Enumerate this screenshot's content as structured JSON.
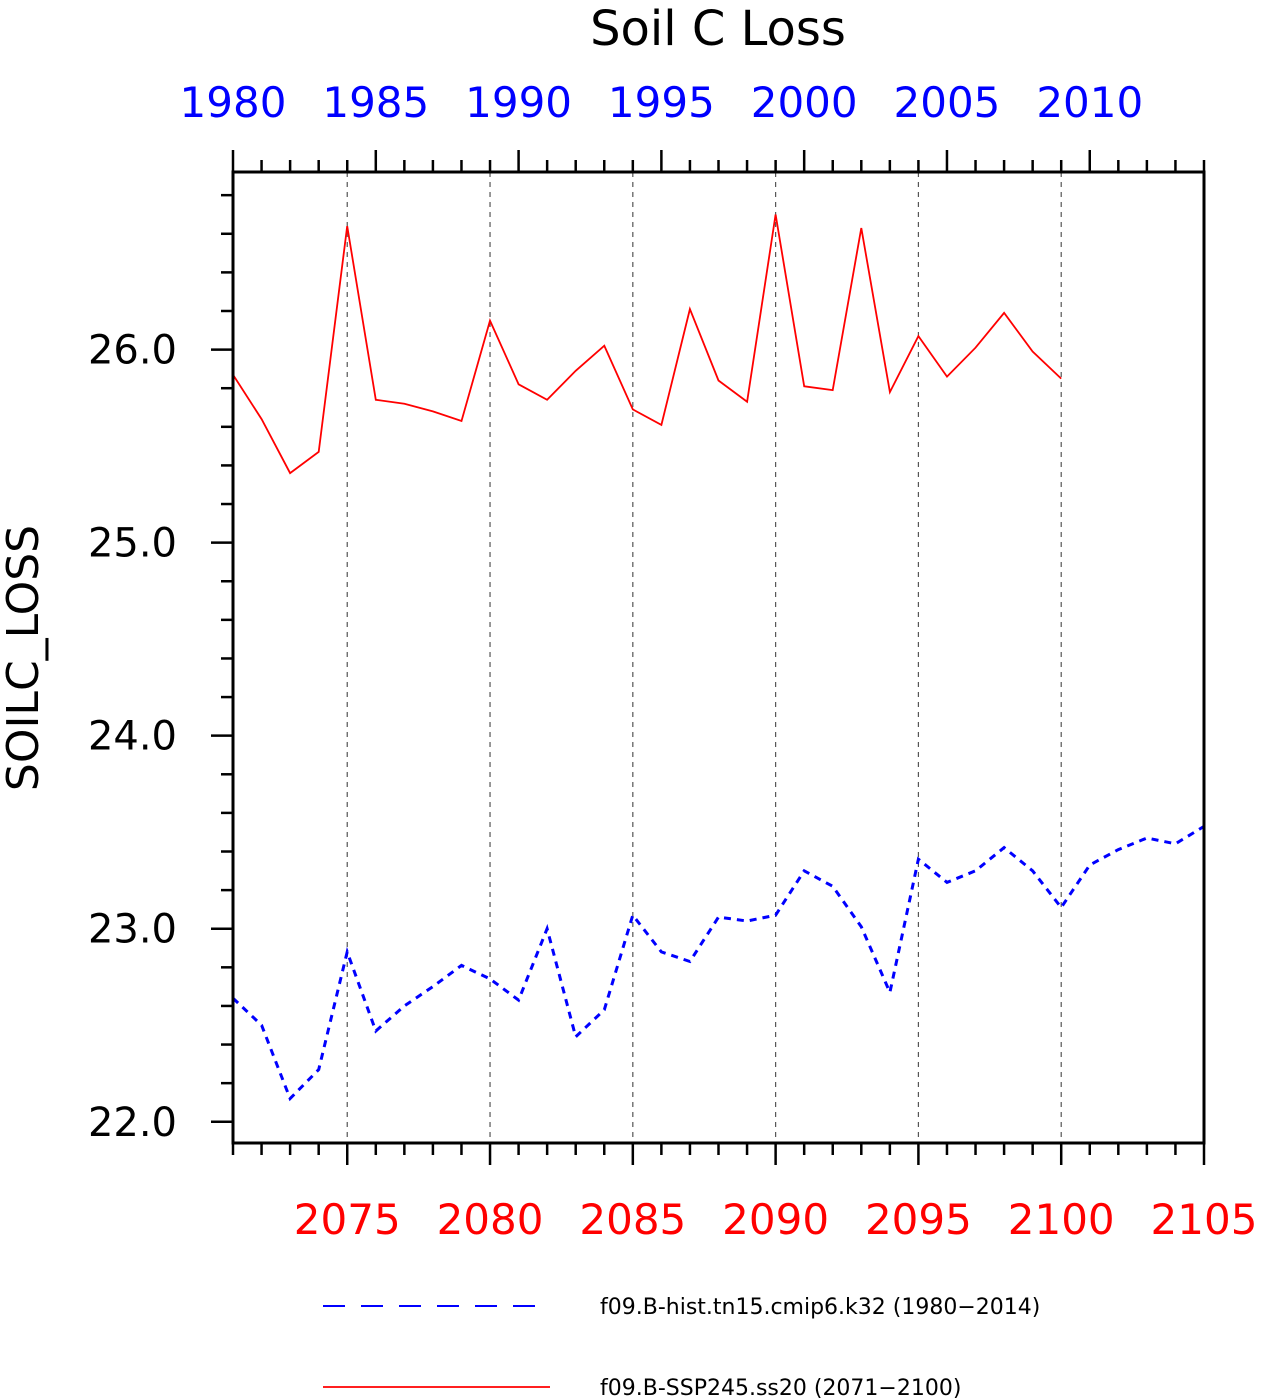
{
  "chart_data": {
    "type": "line",
    "title": "Soil C Loss",
    "ylabel": "SOILC_LOSS",
    "ylim": [
      21.89,
      26.92
    ],
    "yticks": [
      "22.0",
      "23.0",
      "24.0",
      "25.0",
      "26.0"
    ],
    "grid": "vertical dashed lines at major bottom-axis ticks",
    "legend_position": "bottom",
    "bottom_axis": {
      "color": "#ff0000",
      "range": [
        2071,
        2105
      ],
      "tick_labels": [
        "2075",
        "2080",
        "2085",
        "2090",
        "2095",
        "2100",
        "2105"
      ]
    },
    "top_axis": {
      "color": "#0000ff",
      "range": [
        1980,
        2014
      ],
      "tick_labels": [
        "1980",
        "1985",
        "1990",
        "1995",
        "2000",
        "2005",
        "2010"
      ]
    },
    "series": [
      {
        "name": "f09.B-hist.tn15.cmip6.k32 (1980−2014)",
        "color": "#0000ff",
        "style": "dashed",
        "axis": "top",
        "x": [
          1980,
          1981,
          1982,
          1983,
          1984,
          1985,
          1986,
          1987,
          1988,
          1989,
          1990,
          1991,
          1992,
          1993,
          1994,
          1995,
          1996,
          1997,
          1998,
          1999,
          2000,
          2001,
          2002,
          2003,
          2004,
          2005,
          2006,
          2007,
          2008,
          2009,
          2010,
          2011,
          2012,
          2013,
          2014
        ],
        "values": [
          22.64,
          22.5,
          22.12,
          22.27,
          22.88,
          22.47,
          22.6,
          22.7,
          22.81,
          22.74,
          22.63,
          23.0,
          22.44,
          22.58,
          23.07,
          22.88,
          22.83,
          23.06,
          23.04,
          23.07,
          23.3,
          23.22,
          23.01,
          22.67,
          23.36,
          23.24,
          23.3,
          23.42,
          23.3,
          23.11,
          23.33,
          23.41,
          23.47,
          23.44,
          23.53
        ]
      },
      {
        "name": "f09.B-SSP245.ss20 (2071−2100)",
        "color": "#ff0000",
        "style": "solid",
        "axis": "bottom",
        "x": [
          2071,
          2072,
          2073,
          2074,
          2075,
          2076,
          2077,
          2078,
          2079,
          2080,
          2081,
          2082,
          2083,
          2084,
          2085,
          2086,
          2087,
          2088,
          2089,
          2090,
          2091,
          2092,
          2093,
          2094,
          2095,
          2096,
          2097,
          2098,
          2099,
          2100
        ],
        "values": [
          25.87,
          25.64,
          25.36,
          25.47,
          26.64,
          25.74,
          25.72,
          25.68,
          25.63,
          26.15,
          25.82,
          25.74,
          25.89,
          26.02,
          25.69,
          25.61,
          26.21,
          25.84,
          25.73,
          26.7,
          25.81,
          25.79,
          26.63,
          25.78,
          26.07,
          25.86,
          26.01,
          26.19,
          25.99,
          25.85
        ]
      }
    ]
  }
}
